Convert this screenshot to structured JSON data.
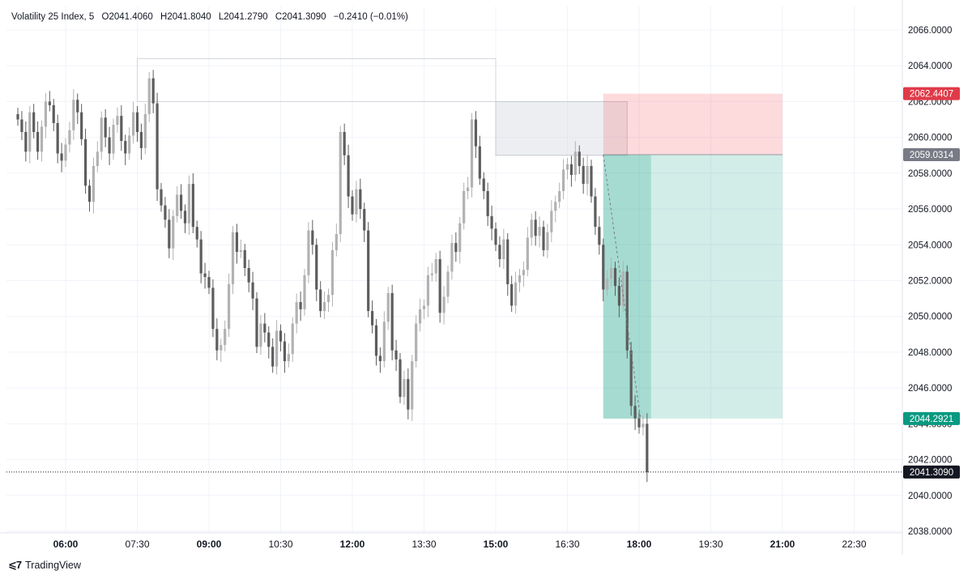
{
  "legend": {
    "symbol": "Volatility 25 Index, 5",
    "open": "O2041.4060",
    "high": "H2041.8040",
    "low": "L2041.2790",
    "close": "C2041.3090",
    "change": "−0.2410 (−0.01%)"
  },
  "branding": "TradingView",
  "colors": {
    "candle_body": "#5d5d5d",
    "candle_body_light": "#b2b2b2",
    "stop_zone": "#f7c5c9",
    "target_zone": "#a8ddd5",
    "stop_label": "#e03a48",
    "entry_label": "#787b86",
    "target_label": "#089981",
    "last_price_label": "#131722"
  },
  "chart_data": {
    "type": "candlestick",
    "y_ticks": [
      "2066.0000",
      "2064.0000",
      "2062.0000",
      "2060.0000",
      "2058.0000",
      "2056.0000",
      "2054.0000",
      "2052.0000",
      "2050.0000",
      "2048.0000",
      "2046.0000",
      "2044.0000",
      "2042.0000",
      "2040.0000",
      "2038.0000"
    ],
    "x_ticks": [
      {
        "label": "06:00",
        "bold": true
      },
      {
        "label": "07:30",
        "bold": false
      },
      {
        "label": "09:00",
        "bold": true
      },
      {
        "label": "10:30",
        "bold": false
      },
      {
        "label": "12:00",
        "bold": true
      },
      {
        "label": "13:30",
        "bold": false
      },
      {
        "label": "15:00",
        "bold": true
      },
      {
        "label": "16:30",
        "bold": false
      },
      {
        "label": "18:00",
        "bold": true
      },
      {
        "label": "19:30",
        "bold": false
      },
      {
        "label": "21:00",
        "bold": true
      },
      {
        "label": "22:30",
        "bold": false
      }
    ],
    "ylim": [
      2037.9,
      2067.0
    ],
    "price_labels": {
      "stop": "2062.4407",
      "entry": "2059.0314",
      "target": "2044.2921",
      "last": "2041.3090"
    },
    "position": {
      "side": "short",
      "entry": 2059.0314,
      "stop": 2062.4407,
      "target": 2044.2921,
      "start": "17:15",
      "end": "21:00",
      "filled_until": "18:15"
    },
    "range_box": {
      "from": "07:30",
      "to": "15:00",
      "high": 2064.4,
      "low": 2062.0
    },
    "supply_box": {
      "from": "15:00",
      "to": "17:45",
      "high": 2062.0,
      "low": 2059.0
    },
    "last_price": 2041.309,
    "candle_interval_minutes": 5,
    "first_candle_time": "05:00",
    "last_candle_time": "18:35",
    "closes": [
      2061.0,
      2060.3,
      2059.2,
      2061.4,
      2060.3,
      2059.2,
      2060.6,
      2062.0,
      2061.8,
      2060.8,
      2059.1,
      2058.7,
      2059.6,
      2060.4,
      2062.1,
      2061.4,
      2059.9,
      2057.3,
      2056.4,
      2058.4,
      2059.2,
      2061.1,
      2060.0,
      2059.1,
      2060.7,
      2061.2,
      2059.8,
      2059.1,
      2060.1,
      2061.4,
      2060.3,
      2059.4,
      2061.3,
      2063.3,
      2061.9,
      2057.1,
      2056.2,
      2055.4,
      2053.8,
      2055.6,
      2056.8,
      2055.9,
      2055.2,
      2057.4,
      2055.0,
      2054.3,
      2052.4,
      2052.2,
      2051.6,
      2049.3,
      2048.1,
      2048.4,
      2049.3,
      2051.8,
      2054.7,
      2053.6,
      2053.7,
      2052.7,
      2051.9,
      2051.0,
      2048.3,
      2049.6,
      2049.1,
      2048.3,
      2047.2,
      2049.2,
      2048.6,
      2047.5,
      2047.9,
      2049.6,
      2050.8,
      2050.4,
      2052.3,
      2054.8,
      2054.0,
      2051.5,
      2050.3,
      2050.8,
      2051.2,
      2053.7,
      2054.6,
      2060.3,
      2059.0,
      2056.7,
      2055.7,
      2057.1,
      2056.0,
      2054.8,
      2050.3,
      2049.5,
      2047.8,
      2047.5,
      2049.7,
      2051.3,
      2048.1,
      2047.6,
      2045.5,
      2046.5,
      2044.8,
      2047.5,
      2049.6,
      2050.4,
      2050.6,
      2052.3,
      2052.4,
      2053.2,
      2050.2,
      2051.1,
      2052.5,
      2054.1,
      2053.6,
      2055.2,
      2057.0,
      2057.2,
      2061.0,
      2059.5,
      2057.7,
      2057.0,
      2055.6,
      2054.9,
      2054.0,
      2053.2,
      2054.3,
      2051.8,
      2050.6,
      2051.9,
      2052.3,
      2052.6,
      2054.4,
      2055.4,
      2054.5,
      2055.0,
      2053.7,
      2054.7,
      2055.9,
      2056.4,
      2057.0,
      2058.2,
      2058.5,
      2057.9,
      2059.2,
      2058.4,
      2057.4,
      2058.4,
      2056.7,
      2055.0,
      2054.0,
      2051.5,
      2052.1,
      2052.7,
      2051.7,
      2050.6,
      2052.5,
      2048.1,
      2045.0,
      2044.3,
      2043.8,
      2044.0,
      2041.3
    ]
  }
}
